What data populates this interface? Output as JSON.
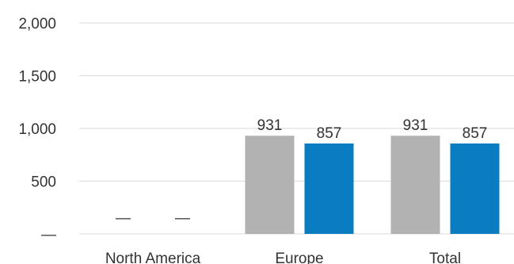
{
  "chart_data": {
    "type": "bar",
    "categories": [
      "North America",
      "Europe",
      "Total"
    ],
    "series": [
      {
        "values": [
          0,
          931,
          857
        ],
        "color": "#b2b2b2"
      }
    ],
    "ylim": [
      0,
      2000
    ],
    "y_ticks": [
      {
        "value": 0,
        "label": "—"
      },
      {
        "value": 500,
        "label": "500"
      },
      {
        "value": 1000,
        "label": "1,000"
      },
      {
        "value": 1500,
        "label": "1,500"
      },
      {
        "value": 2000,
        "label": "2,000"
      }
    ],
    "grid": true,
    "legend": "none"
  }
}
